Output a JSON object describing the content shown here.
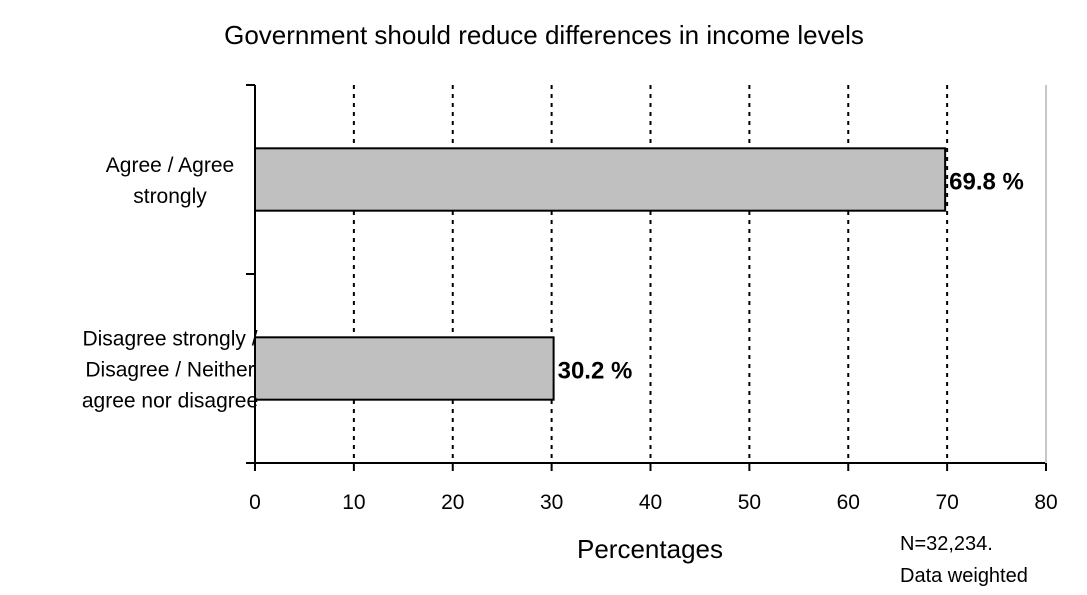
{
  "chart_data": {
    "type": "bar",
    "orientation": "horizontal",
    "title": "Government should reduce differences in income levels",
    "xlabel": "Percentages",
    "ylabel": "",
    "xlim": [
      0,
      80
    ],
    "x_ticks": [
      0,
      10,
      20,
      30,
      40,
      50,
      60,
      70,
      80
    ],
    "grid": "vertical dotted",
    "categories": [
      [
        "Agree / Agree",
        "strongly"
      ],
      [
        "Disagree strongly /",
        "Disagree / Neither",
        "agree nor disagree"
      ]
    ],
    "values": [
      69.8,
      30.2
    ],
    "data_labels": [
      "69.8 %",
      "30.2 %"
    ],
    "bar_color": "#c0c0c0",
    "note": [
      "N=32,234.",
      "Data weighted"
    ]
  }
}
